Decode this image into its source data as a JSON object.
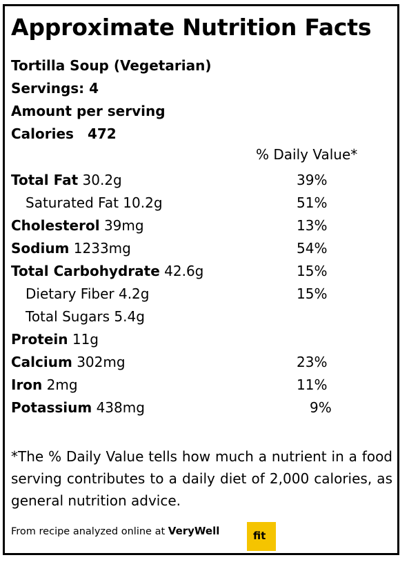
{
  "title": "Approximate Nutrition Facts",
  "recipe_name": "Tortilla Soup (Vegetarian)",
  "servings": "Servings: 4",
  "amount_per_serving": "Amount per serving",
  "calories_label": "Calories",
  "calories_value": "472",
  "daily_value_header": "% Daily Value*",
  "nutrients": [
    {
      "name": "Total Fat",
      "amount": "30.2g",
      "dv": "39%"
    },
    {
      "name": "Saturated Fat",
      "amount": "10.2g",
      "dv": "51%"
    },
    {
      "name": "Cholesterol",
      "amount": "39mg",
      "dv": "13%"
    },
    {
      "name": "Sodium",
      "amount": "1233mg",
      "dv": "54%"
    },
    {
      "name": "Total Carbohydrate",
      "amount": "42.6g",
      "dv": "15%"
    },
    {
      "name": "Dietary Fiber",
      "amount": "4.2g",
      "dv": "15%"
    },
    {
      "name": "Total Sugars",
      "amount": "5.4g",
      "dv": ""
    },
    {
      "name": "Protein",
      "amount": "11g",
      "dv": ""
    },
    {
      "name": "Calcium",
      "amount": "302mg",
      "dv": "23%"
    },
    {
      "name": "Iron",
      "amount": "2mg",
      "dv": "11%"
    },
    {
      "name": "Potassium",
      "amount": "438mg",
      "dv": "9%"
    }
  ],
  "footnote": "*The % Daily Value tells how much a nutrient in a food serving contributes to a daily diet of 2,000 calories, as general nutrition advice.",
  "source_text": "From recipe analyzed online at",
  "source_brand": "VeryWell",
  "source_badge": "fit",
  "colors": {
    "badge": "#f5c400",
    "border": "#000000"
  }
}
